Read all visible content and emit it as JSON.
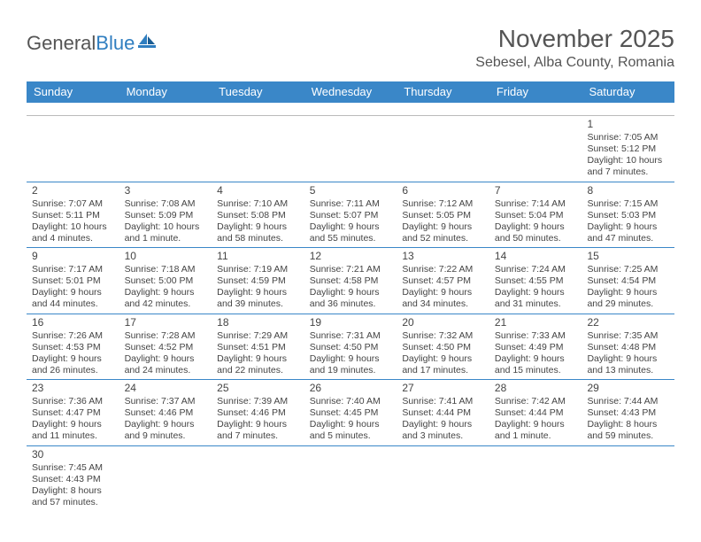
{
  "brand": {
    "part1": "General",
    "part2": "Blue"
  },
  "title": "November 2025",
  "location": "Sebesel, Alba County, Romania",
  "colors": {
    "header_bg": "#3a87c8",
    "header_text": "#ffffff",
    "row_divider": "#3a87c8",
    "text": "#444444",
    "background": "#ffffff"
  },
  "typography": {
    "title_fontsize": 28,
    "location_fontsize": 16,
    "dayhead_fontsize": 13,
    "cell_fontsize": 10.5
  },
  "day_headers": [
    "Sunday",
    "Monday",
    "Tuesday",
    "Wednesday",
    "Thursday",
    "Friday",
    "Saturday"
  ],
  "days": {
    "1": {
      "sunrise": "7:05 AM",
      "sunset": "5:12 PM",
      "daylight": "10 hours and 7 minutes."
    },
    "2": {
      "sunrise": "7:07 AM",
      "sunset": "5:11 PM",
      "daylight": "10 hours and 4 minutes."
    },
    "3": {
      "sunrise": "7:08 AM",
      "sunset": "5:09 PM",
      "daylight": "10 hours and 1 minute."
    },
    "4": {
      "sunrise": "7:10 AM",
      "sunset": "5:08 PM",
      "daylight": "9 hours and 58 minutes."
    },
    "5": {
      "sunrise": "7:11 AM",
      "sunset": "5:07 PM",
      "daylight": "9 hours and 55 minutes."
    },
    "6": {
      "sunrise": "7:12 AM",
      "sunset": "5:05 PM",
      "daylight": "9 hours and 52 minutes."
    },
    "7": {
      "sunrise": "7:14 AM",
      "sunset": "5:04 PM",
      "daylight": "9 hours and 50 minutes."
    },
    "8": {
      "sunrise": "7:15 AM",
      "sunset": "5:03 PM",
      "daylight": "9 hours and 47 minutes."
    },
    "9": {
      "sunrise": "7:17 AM",
      "sunset": "5:01 PM",
      "daylight": "9 hours and 44 minutes."
    },
    "10": {
      "sunrise": "7:18 AM",
      "sunset": "5:00 PM",
      "daylight": "9 hours and 42 minutes."
    },
    "11": {
      "sunrise": "7:19 AM",
      "sunset": "4:59 PM",
      "daylight": "9 hours and 39 minutes."
    },
    "12": {
      "sunrise": "7:21 AM",
      "sunset": "4:58 PM",
      "daylight": "9 hours and 36 minutes."
    },
    "13": {
      "sunrise": "7:22 AM",
      "sunset": "4:57 PM",
      "daylight": "9 hours and 34 minutes."
    },
    "14": {
      "sunrise": "7:24 AM",
      "sunset": "4:55 PM",
      "daylight": "9 hours and 31 minutes."
    },
    "15": {
      "sunrise": "7:25 AM",
      "sunset": "4:54 PM",
      "daylight": "9 hours and 29 minutes."
    },
    "16": {
      "sunrise": "7:26 AM",
      "sunset": "4:53 PM",
      "daylight": "9 hours and 26 minutes."
    },
    "17": {
      "sunrise": "7:28 AM",
      "sunset": "4:52 PM",
      "daylight": "9 hours and 24 minutes."
    },
    "18": {
      "sunrise": "7:29 AM",
      "sunset": "4:51 PM",
      "daylight": "9 hours and 22 minutes."
    },
    "19": {
      "sunrise": "7:31 AM",
      "sunset": "4:50 PM",
      "daylight": "9 hours and 19 minutes."
    },
    "20": {
      "sunrise": "7:32 AM",
      "sunset": "4:50 PM",
      "daylight": "9 hours and 17 minutes."
    },
    "21": {
      "sunrise": "7:33 AM",
      "sunset": "4:49 PM",
      "daylight": "9 hours and 15 minutes."
    },
    "22": {
      "sunrise": "7:35 AM",
      "sunset": "4:48 PM",
      "daylight": "9 hours and 13 minutes."
    },
    "23": {
      "sunrise": "7:36 AM",
      "sunset": "4:47 PM",
      "daylight": "9 hours and 11 minutes."
    },
    "24": {
      "sunrise": "7:37 AM",
      "sunset": "4:46 PM",
      "daylight": "9 hours and 9 minutes."
    },
    "25": {
      "sunrise": "7:39 AM",
      "sunset": "4:46 PM",
      "daylight": "9 hours and 7 minutes."
    },
    "26": {
      "sunrise": "7:40 AM",
      "sunset": "4:45 PM",
      "daylight": "9 hours and 5 minutes."
    },
    "27": {
      "sunrise": "7:41 AM",
      "sunset": "4:44 PM",
      "daylight": "9 hours and 3 minutes."
    },
    "28": {
      "sunrise": "7:42 AM",
      "sunset": "4:44 PM",
      "daylight": "9 hours and 1 minute."
    },
    "29": {
      "sunrise": "7:44 AM",
      "sunset": "4:43 PM",
      "daylight": "8 hours and 59 minutes."
    },
    "30": {
      "sunrise": "7:45 AM",
      "sunset": "4:43 PM",
      "daylight": "8 hours and 57 minutes."
    }
  },
  "layout": {
    "first_day_column": 6,
    "rows": [
      [
        null,
        null,
        null,
        null,
        null,
        null,
        1
      ],
      [
        2,
        3,
        4,
        5,
        6,
        7,
        8
      ],
      [
        9,
        10,
        11,
        12,
        13,
        14,
        15
      ],
      [
        16,
        17,
        18,
        19,
        20,
        21,
        22
      ],
      [
        23,
        24,
        25,
        26,
        27,
        28,
        29
      ],
      [
        30,
        null,
        null,
        null,
        null,
        null,
        null
      ]
    ]
  },
  "labels": {
    "sunrise_prefix": "Sunrise: ",
    "sunset_prefix": "Sunset: ",
    "daylight_prefix": "Daylight: "
  }
}
